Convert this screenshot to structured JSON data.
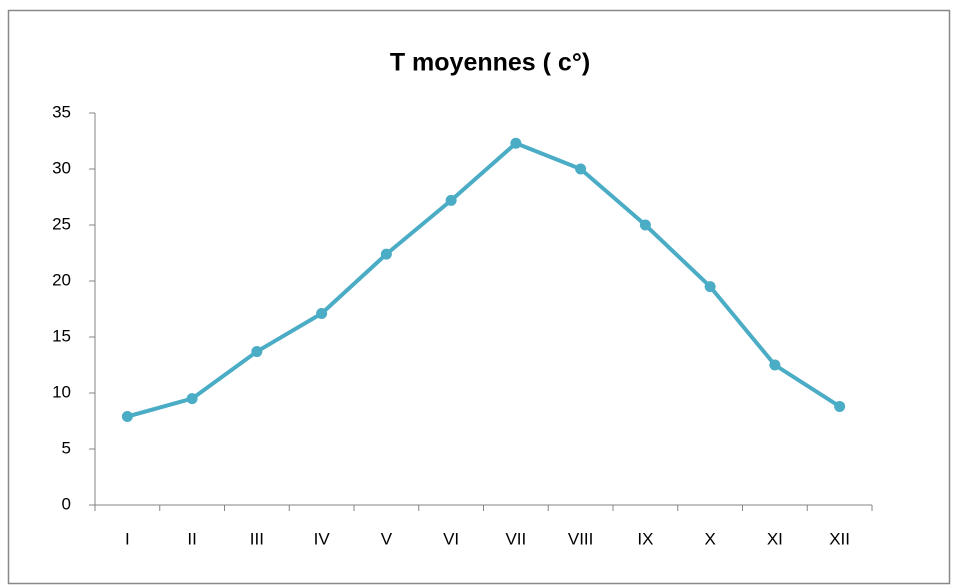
{
  "chart_data": {
    "type": "line",
    "title": "T moyennes ( c°)",
    "categories": [
      "I",
      "II",
      "III",
      "IV",
      "V",
      "VI",
      "VII",
      "VIII",
      "IX",
      "X",
      "XI",
      "XII"
    ],
    "series": [
      {
        "name": "T moyennes ( c°)",
        "color": "#4bacc6",
        "values": [
          7.9,
          9.5,
          13.7,
          17.1,
          22.4,
          27.2,
          32.3,
          30.0,
          25.0,
          19.5,
          12.5,
          8.8
        ]
      }
    ],
    "ylim": [
      0,
      35
    ],
    "yticks": [
      0,
      5,
      10,
      15,
      20,
      25,
      30,
      35
    ],
    "grid": false
  }
}
